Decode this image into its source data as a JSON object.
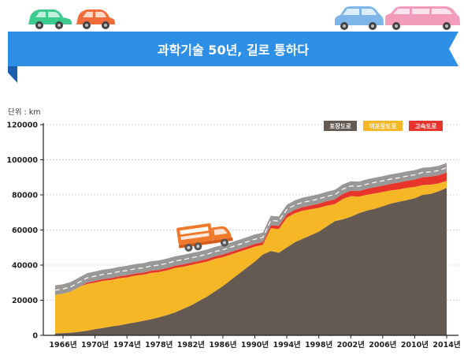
{
  "banner": {
    "title": "과학기술 50년, 길로 통하다"
  },
  "colors": {
    "banner": "#2e8fe6",
    "banner_fold": "#1a5fb0",
    "paved": "#645a52",
    "unpaved": "#f6b726",
    "expressway": "#e8352b",
    "road_gray": "#9a9896",
    "road_dash": "#ffffff",
    "axis": "#222222",
    "grid": "#c8c8c8",
    "truck": "#f0782a"
  },
  "chart_data": {
    "type": "area",
    "unit_label": "단위 : km",
    "ylim": [
      0,
      120000
    ],
    "y_ticks": [
      0,
      20000,
      40000,
      60000,
      80000,
      100000,
      120000
    ],
    "x_ticks": [
      "1966년",
      "1970년",
      "1974년",
      "1978년",
      "1982년",
      "1986년",
      "1990년",
      "1994년",
      "1998년",
      "2002년",
      "2006년",
      "2010년",
      "2014년"
    ],
    "grid": true,
    "legend_position": "top-right",
    "legend": [
      {
        "label": "포장도로",
        "color_key": "paved"
      },
      {
        "label": "미포장도로",
        "color_key": "unpaved"
      },
      {
        "label": "고속도로",
        "color_key": "expressway"
      }
    ],
    "years": [
      1965,
      1966,
      1967,
      1968,
      1969,
      1970,
      1971,
      1972,
      1973,
      1974,
      1975,
      1976,
      1977,
      1978,
      1979,
      1980,
      1981,
      1982,
      1983,
      1984,
      1985,
      1986,
      1987,
      1988,
      1989,
      1990,
      1991,
      1992,
      1993,
      1994,
      1995,
      1996,
      1997,
      1998,
      1999,
      2000,
      2001,
      2002,
      2003,
      2004,
      2005,
      2006,
      2007,
      2008,
      2009,
      2010,
      2011,
      2012,
      2013,
      2014
    ],
    "series": [
      {
        "name": "포장도로",
        "values": [
          1000,
          1200,
          1500,
          2000,
          2600,
          3500,
          4200,
          5000,
          5600,
          6500,
          7300,
          8200,
          9100,
          10200,
          11500,
          13000,
          15000,
          17000,
          19500,
          22000,
          25000,
          28000,
          31500,
          35000,
          38500,
          42000,
          46000,
          48000,
          47000,
          50000,
          53000,
          55000,
          57000,
          59000,
          62000,
          65000,
          66000,
          67500,
          69500,
          71000,
          72000,
          73500,
          75000,
          76000,
          77000,
          78000,
          80000,
          80500,
          82000,
          84000
        ]
      },
      {
        "name": "미포장도로",
        "values": [
          22000,
          22500,
          23500,
          25500,
          26600,
          26500,
          26800,
          26500,
          26900,
          26500,
          26700,
          26300,
          26400,
          25800,
          25500,
          25300,
          24000,
          23000,
          21500,
          20000,
          18500,
          16500,
          14500,
          12500,
          10500,
          8500,
          5500,
          13000,
          13500,
          17000,
          16500,
          16000,
          14800,
          13600,
          11800,
          9700,
          11600,
          11800,
          9500,
          9000,
          8800,
          8100,
          7500,
          7000,
          7000,
          6500,
          5600,
          5300,
          4500,
          4000
        ]
      },
      {
        "name": "고속도로",
        "values": [
          0,
          0,
          0,
          0,
          800,
          1000,
          1000,
          1100,
          1100,
          1200,
          1200,
          1200,
          1300,
          1300,
          1300,
          1300,
          1400,
          1400,
          1400,
          1400,
          1500,
          1500,
          1500,
          1500,
          1500,
          1600,
          1600,
          1700,
          1900,
          2000,
          2000,
          2100,
          2200,
          2400,
          2600,
          2800,
          3000,
          3100,
          3200,
          3400,
          3600,
          3700,
          3800,
          4000,
          4000,
          4200,
          4500,
          4600,
          4700,
          4800
        ]
      }
    ]
  }
}
